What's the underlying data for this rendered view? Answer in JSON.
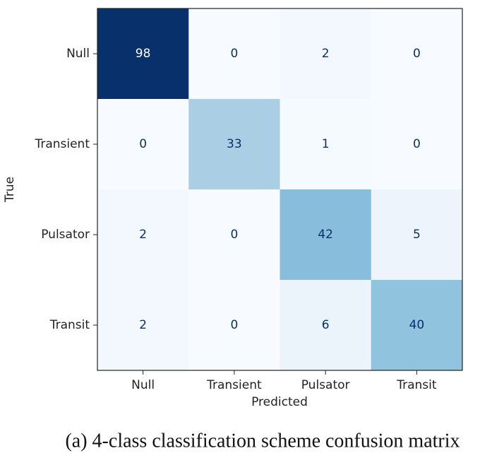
{
  "chart_data": {
    "type": "heatmap",
    "x_label": "Predicted",
    "y_label": "True",
    "x_categories": [
      "Null",
      "Transient",
      "Pulsator",
      "Transit"
    ],
    "y_categories": [
      "Null",
      "Transient",
      "Pulsator",
      "Transit"
    ],
    "values": [
      [
        98,
        0,
        2,
        0
      ],
      [
        0,
        33,
        1,
        0
      ],
      [
        2,
        0,
        42,
        5
      ],
      [
        2,
        0,
        6,
        40
      ]
    ],
    "colormap": "Blues",
    "caption": "(a) 4-class classification scheme confusion matrix"
  }
}
